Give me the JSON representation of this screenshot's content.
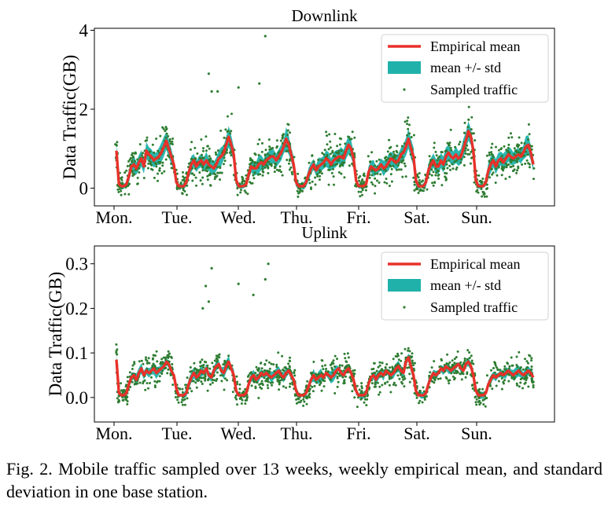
{
  "caption": "Fig. 2.  Mobile traffic sampled over 13 weeks, weekly empirical mean, and standard deviation in one base station.",
  "colors": {
    "mean": "#e8312a",
    "std": "#20b2aa",
    "sampled": "#2e7d32"
  },
  "chart_data": [
    {
      "type": "line",
      "title": "Downlink",
      "ylabel": "Data Traffic(GB)",
      "xlabel": "",
      "x_ticks": [
        "Mon.",
        "Tue.",
        "Wed.",
        "Thu.",
        "Fri.",
        "Sat.",
        "Sun."
      ],
      "y_ticks": [
        "0",
        "2",
        "4"
      ],
      "ylim": [
        -0.45,
        4.05
      ],
      "legend": {
        "placement": "top-right",
        "entries": [
          "Empirical mean",
          "mean +/- std",
          "Sampled traffic"
        ]
      },
      "grid": false,
      "points_per_day": 24,
      "series": [
        {
          "name": "Empirical mean",
          "kind": "line",
          "values": [
            0.95,
            0.1,
            0.05,
            0.05,
            0.1,
            0.3,
            0.55,
            0.6,
            0.5,
            0.65,
            0.75,
            0.55,
            0.95,
            0.85,
            0.8,
            0.7,
            0.75,
            0.8,
            0.9,
            1.05,
            1.2,
            1.0,
            0.8,
            0.6,
            0.15,
            0.05,
            0.05,
            0.05,
            0.15,
            0.4,
            0.6,
            0.7,
            0.55,
            0.65,
            0.7,
            0.6,
            0.7,
            0.6,
            0.55,
            0.5,
            0.6,
            0.75,
            0.8,
            0.9,
            1.1,
            1.3,
            1.1,
            0.85,
            0.2,
            0.05,
            0.05,
            0.05,
            0.1,
            0.35,
            0.55,
            0.5,
            0.5,
            0.6,
            0.65,
            0.6,
            0.7,
            0.75,
            0.8,
            0.8,
            0.7,
            0.8,
            0.9,
            1.05,
            1.25,
            1.1,
            0.85,
            0.6,
            0.15,
            0.05,
            0.05,
            0.05,
            0.15,
            0.35,
            0.5,
            0.6,
            0.45,
            0.55,
            0.6,
            0.65,
            0.75,
            0.7,
            0.6,
            0.7,
            0.75,
            0.8,
            0.8,
            0.75,
            0.95,
            1.1,
            1.0,
            0.75,
            0.2,
            0.05,
            0.05,
            0.05,
            0.1,
            0.4,
            0.55,
            0.5,
            0.45,
            0.5,
            0.6,
            0.5,
            0.55,
            0.65,
            0.75,
            0.7,
            0.65,
            0.7,
            0.85,
            0.9,
            1.05,
            1.25,
            1.0,
            0.8,
            0.2,
            0.05,
            0.05,
            0.05,
            0.15,
            0.45,
            0.6,
            0.7,
            0.55,
            0.55,
            0.7,
            0.6,
            0.8,
            0.9,
            0.8,
            0.75,
            0.85,
            0.75,
            0.8,
            1.0,
            1.2,
            1.45,
            1.3,
            0.95,
            0.2,
            0.05,
            0.05,
            0.05,
            0.15,
            0.45,
            0.6,
            0.7,
            0.55,
            0.7,
            0.75,
            0.65,
            0.75,
            0.85,
            0.8,
            0.75,
            0.8,
            0.85,
            0.8,
            0.9,
            1.05,
            1.1,
            0.9,
            0.6
          ]
        },
        {
          "name": "mean +/- std",
          "kind": "band",
          "std_scale": [
            0.12,
            0.35
          ]
        },
        {
          "name": "Sampled traffic",
          "kind": "scatter",
          "count": 1200,
          "outliers": [
            [
              2.5,
              3.85
            ],
            [
              1.55,
              2.9
            ],
            [
              1.7,
              2.45
            ],
            [
              1.6,
              2.45
            ],
            [
              2.4,
              2.65
            ],
            [
              2.05,
              2.55
            ]
          ]
        }
      ]
    },
    {
      "type": "line",
      "title": "Uplink",
      "ylabel": "Data Traffic(GB)",
      "xlabel": "",
      "x_ticks": [
        "Mon.",
        "Tue.",
        "Wed.",
        "Thu.",
        "Fri.",
        "Sat.",
        "Sun."
      ],
      "y_ticks": [
        "0.0",
        "0.1",
        "0.2",
        "0.3"
      ],
      "ylim": [
        -0.055,
        0.34
      ],
      "legend": {
        "placement": "top-right",
        "entries": [
          "Empirical mean",
          "mean +/- std",
          "Sampled traffic"
        ]
      },
      "grid": false,
      "points_per_day": 24,
      "series": [
        {
          "name": "Empirical mean",
          "kind": "line",
          "values": [
            0.085,
            0.01,
            0.005,
            0.005,
            0.01,
            0.03,
            0.045,
            0.05,
            0.04,
            0.055,
            0.065,
            0.05,
            0.06,
            0.055,
            0.06,
            0.065,
            0.055,
            0.06,
            0.065,
            0.07,
            0.08,
            0.075,
            0.06,
            0.05,
            0.02,
            0.005,
            0.005,
            0.005,
            0.01,
            0.03,
            0.045,
            0.055,
            0.045,
            0.05,
            0.06,
            0.055,
            0.065,
            0.05,
            0.045,
            0.06,
            0.07,
            0.075,
            0.06,
            0.055,
            0.07,
            0.08,
            0.065,
            0.05,
            0.015,
            0.005,
            0.005,
            0.005,
            0.01,
            0.03,
            0.045,
            0.05,
            0.04,
            0.045,
            0.055,
            0.05,
            0.055,
            0.05,
            0.045,
            0.05,
            0.055,
            0.06,
            0.05,
            0.045,
            0.055,
            0.06,
            0.05,
            0.04,
            0.015,
            0.005,
            0.005,
            0.005,
            0.01,
            0.025,
            0.04,
            0.05,
            0.04,
            0.045,
            0.05,
            0.045,
            0.055,
            0.05,
            0.045,
            0.05,
            0.06,
            0.065,
            0.055,
            0.05,
            0.06,
            0.065,
            0.055,
            0.04,
            0.015,
            0.005,
            0.005,
            0.005,
            0.01,
            0.03,
            0.045,
            0.05,
            0.04,
            0.05,
            0.055,
            0.05,
            0.06,
            0.055,
            0.05,
            0.055,
            0.065,
            0.07,
            0.06,
            0.055,
            0.08,
            0.09,
            0.07,
            0.05,
            0.015,
            0.005,
            0.005,
            0.005,
            0.01,
            0.03,
            0.045,
            0.055,
            0.05,
            0.055,
            0.065,
            0.06,
            0.07,
            0.065,
            0.06,
            0.065,
            0.07,
            0.075,
            0.065,
            0.06,
            0.075,
            0.08,
            0.07,
            0.05,
            0.015,
            0.005,
            0.005,
            0.005,
            0.01,
            0.03,
            0.04,
            0.05,
            0.045,
            0.05,
            0.055,
            0.05,
            0.055,
            0.06,
            0.055,
            0.05,
            0.055,
            0.06,
            0.055,
            0.05,
            0.055,
            0.06,
            0.055,
            0.045
          ]
        },
        {
          "name": "mean +/- std",
          "kind": "band",
          "std_scale": [
            0.01,
            0.03
          ]
        },
        {
          "name": "Sampled traffic",
          "kind": "scatter",
          "count": 1200,
          "outliers": [
            [
              1.6,
              0.29
            ],
            [
              1.5,
              0.25
            ],
            [
              1.45,
              0.2
            ],
            [
              2.55,
              0.3
            ],
            [
              2.5,
              0.265
            ],
            [
              2.05,
              0.255
            ],
            [
              2.3,
              0.23
            ],
            [
              1.55,
              0.215
            ]
          ]
        }
      ]
    }
  ]
}
